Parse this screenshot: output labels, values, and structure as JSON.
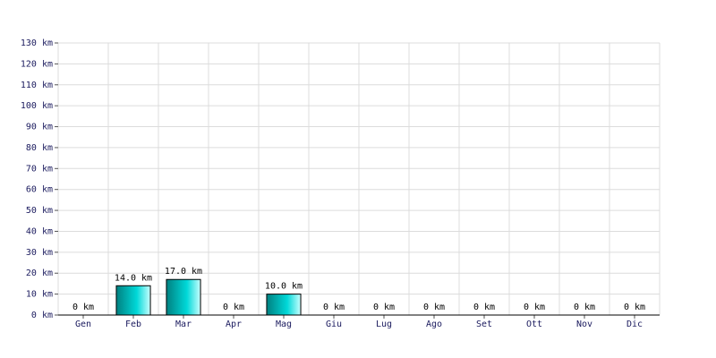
{
  "chart_data": {
    "type": "bar",
    "categories": [
      "Gen",
      "Feb",
      "Mar",
      "Apr",
      "Mag",
      "Giu",
      "Lug",
      "Ago",
      "Set",
      "Ott",
      "Nov",
      "Dic"
    ],
    "values": [
      0,
      14,
      17,
      0,
      10,
      0,
      0,
      0,
      0,
      0,
      0,
      0
    ],
    "value_labels": [
      "0 km",
      "14.0 km",
      "17.0 km",
      "0 km",
      "10.0 km",
      "0 km",
      "0 km",
      "0 km",
      "0 km",
      "0 km",
      "0 km",
      "0 km"
    ],
    "color": "#00d8d8",
    "ylim": [
      0,
      130
    ],
    "yticks": [
      {
        "value": 0,
        "label": "0 km"
      },
      {
        "value": 10,
        "label": "10 km"
      },
      {
        "value": 20,
        "label": "20 km"
      },
      {
        "value": 30,
        "label": "30 km"
      },
      {
        "value": 40,
        "label": "40 km"
      },
      {
        "value": 50,
        "label": "50 km"
      },
      {
        "value": 60,
        "label": "60 km"
      },
      {
        "value": 70,
        "label": "70 km"
      },
      {
        "value": 80,
        "label": "80 km"
      },
      {
        "value": 90,
        "label": "90 km"
      },
      {
        "value": 100,
        "label": "100 km"
      },
      {
        "value": 110,
        "label": "110 km"
      },
      {
        "value": 120,
        "label": "120 km"
      },
      {
        "value": 130,
        "label": "130 km"
      }
    ],
    "grid": true
  }
}
